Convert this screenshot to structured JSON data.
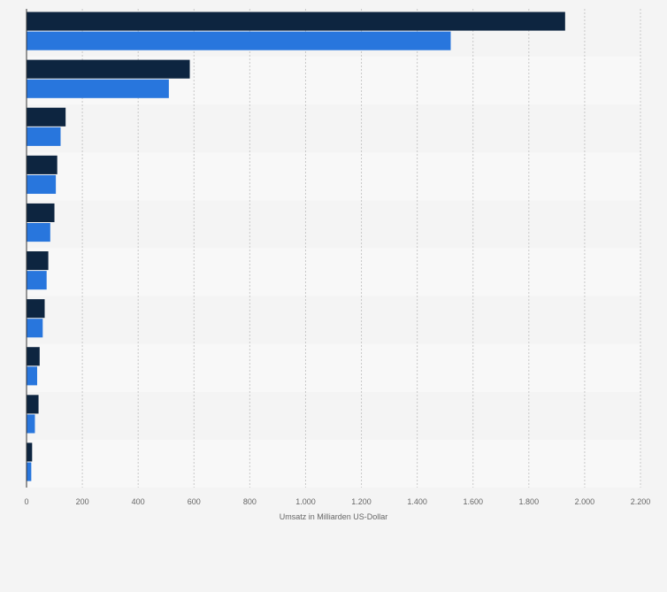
{
  "chart_data": {
    "type": "bar",
    "orientation": "horizontal",
    "title": "",
    "xlabel": "Umsatz in Milliarden US-Dollar",
    "ylabel": "",
    "xlim": [
      0,
      2200
    ],
    "x_ticks": [
      0,
      200,
      400,
      600,
      800,
      1000,
      1200,
      1400,
      1600,
      1800,
      2000,
      2200
    ],
    "x_tick_labels": [
      "0",
      "200",
      "400",
      "600",
      "800",
      "1.000",
      "1.200",
      "1.400",
      "1.600",
      "1.800",
      "2.000",
      "2.200"
    ],
    "categories": [
      "",
      "",
      "",
      "",
      "",
      "",
      "",
      "",
      "",
      ""
    ],
    "series": [
      {
        "values": [
          1930,
          585,
          140,
          110,
          100,
          78,
          65,
          47,
          43,
          20
        ]
      },
      {
        "values": [
          1520,
          510,
          122,
          105,
          85,
          72,
          58,
          38,
          30,
          17
        ]
      }
    ],
    "legend": "none",
    "grid": true
  },
  "colors": {
    "series_1": "#0d2540",
    "series_2": "#2876dd",
    "grid": "#c8c8c8",
    "background": "#f4f4f4",
    "stripe": "#f8f8f8"
  }
}
